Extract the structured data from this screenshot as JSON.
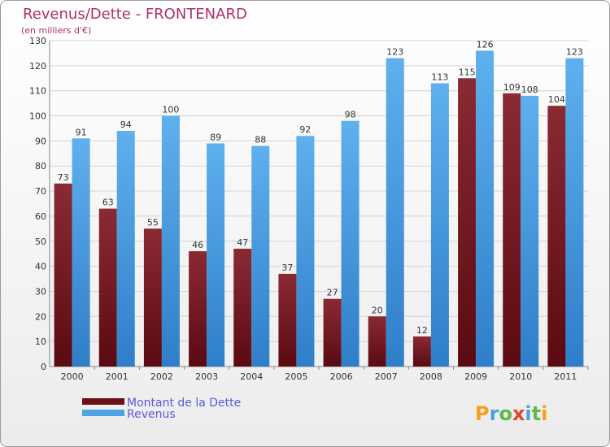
{
  "chart_data": {
    "type": "bar",
    "title": "Revenus/Dette - FRONTENARD",
    "subtitle": "(en milliers d'€)",
    "categories": [
      "2000",
      "2001",
      "2002",
      "2003",
      "2004",
      "2005",
      "2006",
      "2007",
      "2008",
      "2009",
      "2010",
      "2011"
    ],
    "series": [
      {
        "name": "Montant de la Dette",
        "values": [
          73,
          63,
          55,
          46,
          47,
          37,
          27,
          20,
          12,
          115,
          109,
          104
        ],
        "color": "#7a1e28"
      },
      {
        "name": "Revenus",
        "values": [
          91,
          94,
          100,
          89,
          88,
          92,
          98,
          123,
          113,
          126,
          108,
          123
        ],
        "color": "#4ea3e6"
      }
    ],
    "ylim": [
      0,
      130
    ],
    "yticks": [
      0,
      10,
      20,
      30,
      40,
      50,
      60,
      70,
      80,
      90,
      100,
      110,
      120,
      130
    ],
    "grid": true,
    "legend": "bottom-left"
  },
  "logo": {
    "text": "Proxiti"
  }
}
